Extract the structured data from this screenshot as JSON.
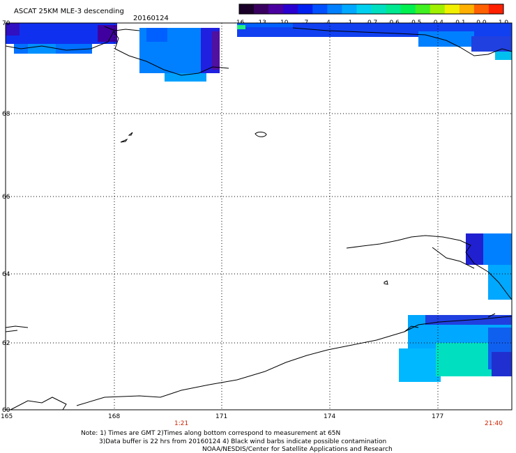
{
  "header": {
    "title": "ASCAT 25KM MLE-3 descending",
    "date": "20160124"
  },
  "colorbar": {
    "colors": [
      "#1a0028",
      "#3a0060",
      "#4a00a0",
      "#2a00d0",
      "#0020f0",
      "#0050ff",
      "#0080ff",
      "#00a8ff",
      "#00d0f0",
      "#00e0c0",
      "#00e890",
      "#00f050",
      "#40f020",
      "#a0f000",
      "#f0f000",
      "#ffb000",
      "#ff6000",
      "#ff2000"
    ],
    "tick_labels": [
      "-16",
      "-13",
      "-10",
      "-7",
      "-4",
      "-1",
      "-0.7",
      "-0.6",
      "-0.5",
      "-0.4",
      "-0.1",
      "0.0",
      "1.0"
    ]
  },
  "axes": {
    "lon_labels": [
      "165",
      "168",
      "171",
      "174",
      "177"
    ],
    "lat_labels": [
      "70",
      "68",
      "66",
      "64",
      "62",
      "60"
    ]
  },
  "times": {
    "left": "1:21",
    "right": "21:40"
  },
  "notes": {
    "line1": "Note: 1) Times are GMT 2)Times along bottom correspond to measurement at 65N",
    "line2": "3)Data buffer is 22 hrs from 20160124 4) Black wind barbs indicate possible contamination",
    "line3": "NOAA/NESDIS/Center for Satellite Applications and Research"
  }
}
